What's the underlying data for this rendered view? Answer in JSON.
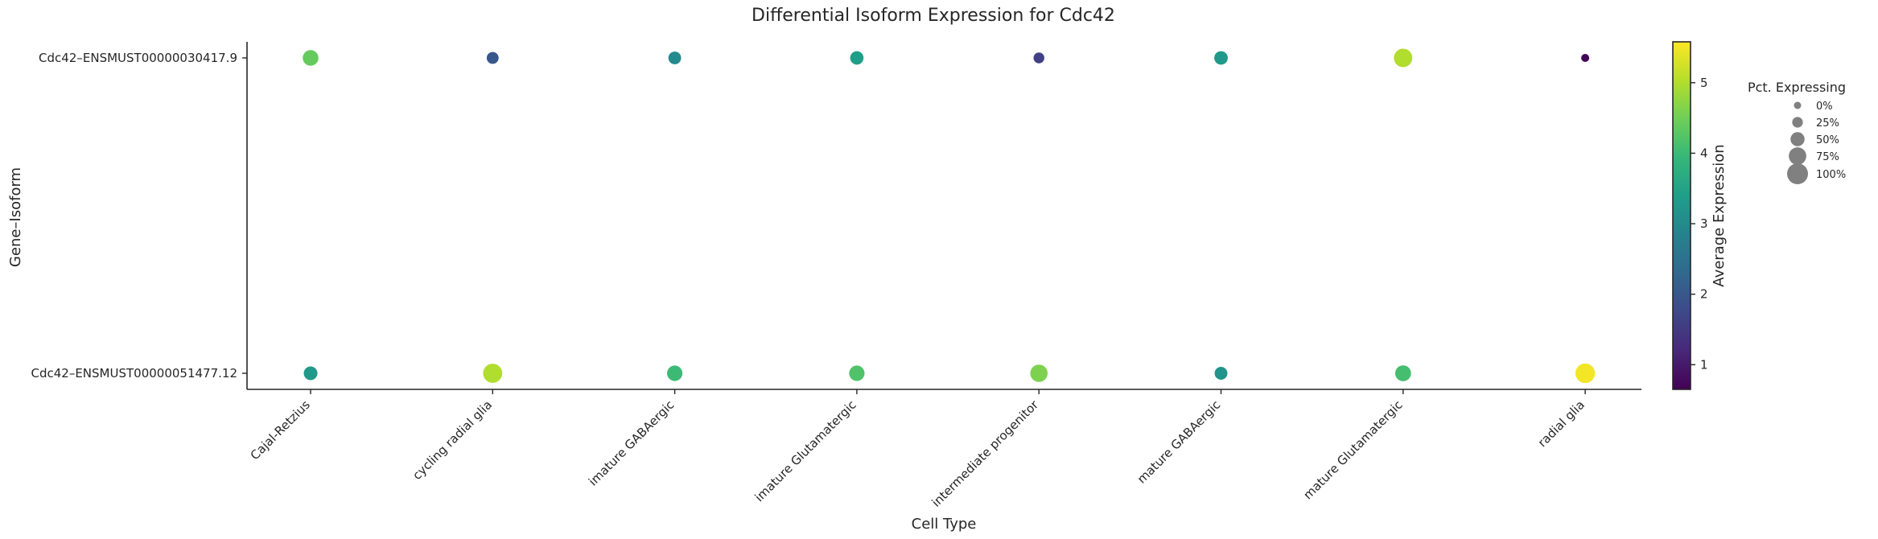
{
  "chart_data": {
    "type": "scatter",
    "title": "Differential Isoform Expression for Cdc42",
    "xlabel": "Cell Type",
    "ylabel": "Gene–Isoform",
    "categories": [
      "Cajal-Retzius",
      "cycling radial glia",
      "imature GABAergic",
      "imature Glutamatergic",
      "intermediate progenitor",
      "mature GABAergic",
      "mature Glutamatergic",
      "radial glia"
    ],
    "isoforms": [
      "Cdc42–ENSMUST00000030417.9",
      "Cdc42–ENSMUST00000051477.12"
    ],
    "series": [
      {
        "name": "Cdc42–ENSMUST00000030417.9",
        "avg_expression": [
          4.4,
          2.0,
          3.0,
          3.4,
          1.6,
          3.3,
          5.0,
          0.7
        ],
        "pct_expressing": [
          62,
          34,
          40,
          45,
          26,
          46,
          82,
          6
        ]
      },
      {
        "name": "Cdc42–ENSMUST00000051477.12",
        "avg_expression": [
          3.3,
          5.0,
          4.0,
          4.2,
          4.6,
          3.2,
          4.1,
          5.5
        ],
        "pct_expressing": [
          47,
          87,
          60,
          60,
          74,
          41,
          63,
          90
        ]
      }
    ],
    "colorbar": {
      "label": "Average Expression",
      "min": 0.65,
      "max": 5.58,
      "ticks": [
        1,
        2,
        3,
        4,
        5
      ],
      "colormap": "viridis"
    },
    "size_legend": {
      "title": "Pct. Expressing",
      "entries": [
        {
          "label": "0%",
          "value": 0
        },
        {
          "label": "25%",
          "value": 25
        },
        {
          "label": "50%",
          "value": 50
        },
        {
          "label": "75%",
          "value": 75
        },
        {
          "label": "100%",
          "value": 100
        }
      ],
      "marker_color": "#808080"
    },
    "grid": false
  }
}
